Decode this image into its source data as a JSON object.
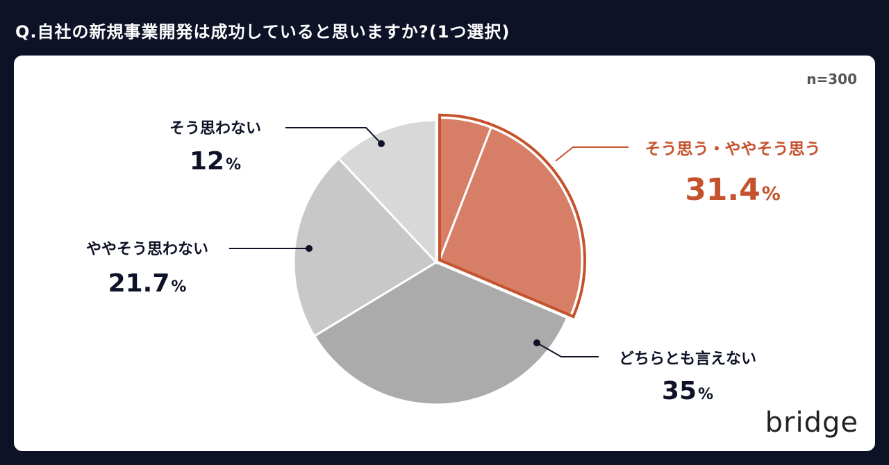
{
  "question": "Q.自社の新規事業開発は成功していると思いますか?(1つ選択)",
  "sample_size": "n=300",
  "brand": "bridge",
  "colors": {
    "background": "#0d1226",
    "highlight": "#c5522d",
    "highlight_fill": "#d67e66",
    "neutral": "#ababab",
    "light": "#c8c8c8",
    "lighter": "#d8d8d8",
    "text": "#0d1226"
  },
  "chart_data": {
    "type": "pie",
    "title": "",
    "total_n": 300,
    "slices": [
      {
        "label": "そう思う・ややそう思う",
        "value": 31.4,
        "value_label": "31.4",
        "highlight": true,
        "sub": [
          {
            "value": 5.9
          },
          {
            "value": 25.5
          }
        ]
      },
      {
        "label": "どちらとも言えない",
        "value": 35,
        "value_label": "35"
      },
      {
        "label": "ややそう思わない",
        "value": 21.7,
        "value_label": "21.7"
      },
      {
        "label": "そう思わない",
        "value": 12,
        "value_label": "12"
      }
    ],
    "unit": "%"
  }
}
